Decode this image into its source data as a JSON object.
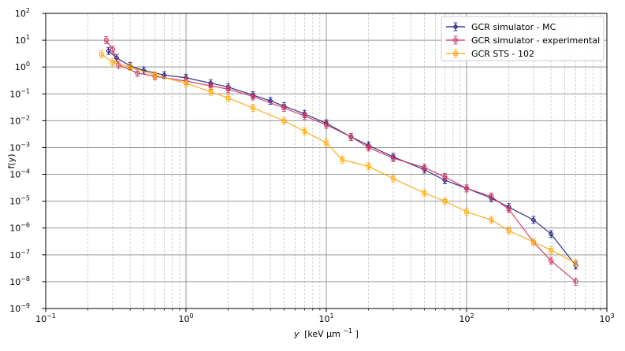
{
  "chart_data": {
    "type": "scatter",
    "title": "",
    "xscale": "log",
    "yscale": "log",
    "xlim": [
      0.1,
      1000
    ],
    "ylim": [
      1e-09,
      100
    ],
    "xlabel": {
      "var": "y",
      "unit": "[keV μm",
      "exp": "−1",
      "close": "]"
    },
    "ylabel": {
      "text": "f(y)"
    },
    "x_ticks": [
      {
        "base": "10",
        "exp": "−1",
        "value": 0.1
      },
      {
        "base": "10",
        "exp": "0",
        "value": 1
      },
      {
        "base": "10",
        "exp": "1",
        "value": 10
      },
      {
        "base": "10",
        "exp": "2",
        "value": 100
      },
      {
        "base": "10",
        "exp": "3",
        "value": 1000
      }
    ],
    "y_ticks": [
      {
        "base": "10",
        "exp": "−9",
        "value": 1e-09
      },
      {
        "base": "10",
        "exp": "−8",
        "value": 1e-08
      },
      {
        "base": "10",
        "exp": "−7",
        "value": 1e-07
      },
      {
        "base": "10",
        "exp": "−6",
        "value": 1e-06
      },
      {
        "base": "10",
        "exp": "−5",
        "value": 1e-05
      },
      {
        "base": "10",
        "exp": "−4",
        "value": 0.0001
      },
      {
        "base": "10",
        "exp": "−3",
        "value": 0.001
      },
      {
        "base": "10",
        "exp": "−2",
        "value": 0.01
      },
      {
        "base": "10",
        "exp": "−1",
        "value": 0.1
      },
      {
        "base": "10",
        "exp": "0",
        "value": 1
      },
      {
        "base": "10",
        "exp": "1",
        "value": 10
      },
      {
        "base": "10",
        "exp": "2",
        "value": 100
      }
    ],
    "grid": true,
    "legend_position": "top-right",
    "series": [
      {
        "name": "GCR simulator - MC",
        "color": "#1a1a80",
        "marker": "diamond",
        "points": [
          [
            0.28,
            4.0
          ],
          [
            0.32,
            2.2
          ],
          [
            0.4,
            1.1
          ],
          [
            0.5,
            0.75
          ],
          [
            0.7,
            0.5
          ],
          [
            1.0,
            0.4
          ],
          [
            1.5,
            0.25
          ],
          [
            2.0,
            0.18
          ],
          [
            3.0,
            0.09
          ],
          [
            4.0,
            0.055
          ],
          [
            5.0,
            0.035
          ],
          [
            7.0,
            0.018
          ],
          [
            10.0,
            0.008
          ],
          [
            15.0,
            0.0025
          ],
          [
            20.0,
            0.0012
          ],
          [
            30.0,
            0.00045
          ],
          [
            50.0,
            0.00015
          ],
          [
            70.0,
            6e-05
          ],
          [
            100.0,
            3e-05
          ],
          [
            150.0,
            1.3e-05
          ],
          [
            200.0,
            6e-06
          ],
          [
            300.0,
            2e-06
          ],
          [
            400.0,
            6e-07
          ],
          [
            600.0,
            4e-08
          ]
        ]
      },
      {
        "name": "GCR simulator - experimental",
        "color": "#d0305a",
        "marker": "circle",
        "points": [
          [
            0.27,
            10.0
          ],
          [
            0.3,
            4.5
          ],
          [
            0.33,
            1.2
          ],
          [
            0.45,
            0.6
          ],
          [
            0.6,
            0.45
          ],
          [
            1.0,
            0.3
          ],
          [
            1.5,
            0.2
          ],
          [
            2.0,
            0.15
          ],
          [
            3.0,
            0.08
          ],
          [
            5.0,
            0.03
          ],
          [
            7.0,
            0.015
          ],
          [
            10.0,
            0.007
          ],
          [
            15.0,
            0.0025
          ],
          [
            20.0,
            0.001
          ],
          [
            30.0,
            0.0004
          ],
          [
            50.0,
            0.00018
          ],
          [
            70.0,
            8e-05
          ],
          [
            100.0,
            3e-05
          ],
          [
            150.0,
            1.5e-05
          ],
          [
            200.0,
            5e-06
          ],
          [
            300.0,
            3e-07
          ],
          [
            400.0,
            6e-08
          ],
          [
            600.0,
            1e-08
          ]
        ]
      },
      {
        "name": "GCR STS - 102",
        "color": "#ffa500",
        "marker": "square",
        "points": [
          [
            0.25,
            3.0
          ],
          [
            0.3,
            1.5
          ],
          [
            0.4,
            1.0
          ],
          [
            0.6,
            0.5
          ],
          [
            1.0,
            0.25
          ],
          [
            1.5,
            0.12
          ],
          [
            2.0,
            0.07
          ],
          [
            3.0,
            0.03
          ],
          [
            5.0,
            0.01
          ],
          [
            7.0,
            0.004
          ],
          [
            10.0,
            0.0015
          ],
          [
            13.0,
            0.00035
          ],
          [
            20.0,
            0.0002
          ],
          [
            30.0,
            7e-05
          ],
          [
            50.0,
            2e-05
          ],
          [
            70.0,
            1e-05
          ],
          [
            100.0,
            4e-06
          ],
          [
            150.0,
            2e-06
          ],
          [
            200.0,
            8e-07
          ],
          [
            300.0,
            3e-07
          ],
          [
            400.0,
            1.5e-07
          ],
          [
            600.0,
            5e-08
          ]
        ]
      }
    ]
  }
}
